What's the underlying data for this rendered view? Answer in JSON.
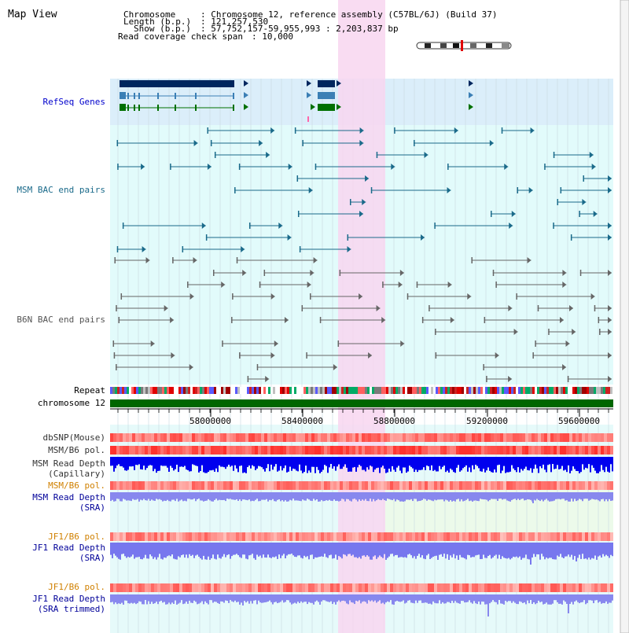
{
  "app": {
    "title": "Map View"
  },
  "info": {
    "chromosome_label": "Chromosome",
    "chromosome_value": ": Chromosome 12, reference assembly (C57BL/6J) (Build 37)",
    "length_label": "Length (b.p.)",
    "length_value": ": 121,257,530",
    "show_label": "Show (b.p.)",
    "show_value": ": 57,752,157-59,955,993 : 2,203,837 bp",
    "coverage_label": "Read coverage check span",
    "coverage_value": ": 10,000"
  },
  "axis": {
    "chromosome_label": "chromosome 12",
    "ticks": [
      "58000000",
      "58400000",
      "58800000",
      "59200000",
      "59600000"
    ]
  },
  "tracks": {
    "refseq": "RefSeq Genes",
    "msm_bac": "MSM BAC end pairs",
    "b6n_bac": "B6N BAC end pairs",
    "repeat": "Repeat",
    "dbsnp": "dbSNP(Mouse)",
    "msm_b6_pol_1": "MSM/B6 pol.",
    "msm_depth_cap_1": "MSM Read Depth",
    "msm_depth_cap_2": "(Capillary)",
    "msm_b6_pol_2": "MSM/B6 pol.",
    "msm_depth_sra_1": "MSM Read Depth",
    "msm_depth_sra_2": "(SRA)",
    "jf1_b6_pol_1": "JF1/B6 pol.",
    "jf1_depth_sra_1": "JF1 Read Depth",
    "jf1_depth_sra_2": "(SRA)",
    "jf1_b6_pol_2": "JF1/B6 pol.",
    "jf1_depth_trim_1": "JF1 Read Depth",
    "jf1_depth_trim_2": "(SRA trimmed)"
  },
  "colors": {
    "refseq_label": "#0000cc",
    "msm_bac": "#1a6a8a",
    "b6n_bac": "#555555",
    "pol_label": "#d08000",
    "depth_label": "#000099",
    "highlight": "#f8d6f0",
    "chromosome_bar": "#006600"
  }
}
